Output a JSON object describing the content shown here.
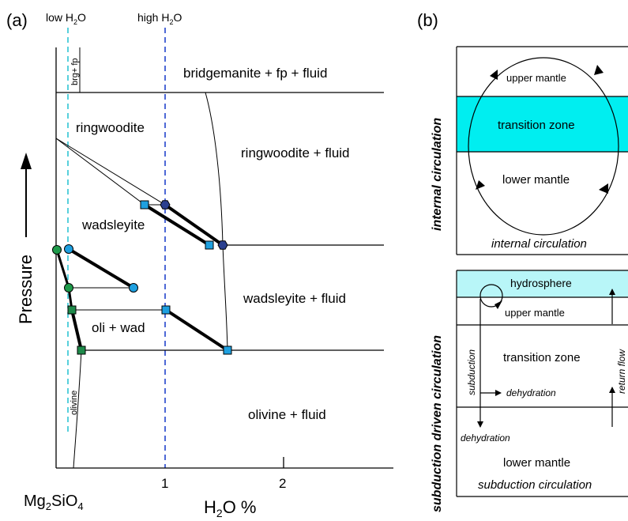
{
  "panel_a": {
    "label": "(a)",
    "low_h2o": {
      "text": "low H",
      "sub": "2",
      "end": "O"
    },
    "high_h2o": {
      "text": "high H",
      "sub": "2",
      "end": "O"
    },
    "y_axis_label": "Pressure",
    "x_origin": {
      "text": "Mg",
      "sub": "2",
      "end": "SiO",
      "sub2": "4"
    },
    "x_unit": {
      "text": "H",
      "sub": "2",
      "end": "O %"
    },
    "ticks": [
      "1",
      "2"
    ],
    "fields": {
      "bridgemanite": "bridgemanite + fp + fluid",
      "brg_fp": "brg+ fp",
      "ringwoodite": "ringwoodite",
      "ringwoodite_fluid": "ringwoodite + fluid",
      "wadsleyite": "wadsleyite",
      "wadsleyite_fluid": "wadsleyite + fluid",
      "oli_wad": "oli + wad",
      "olivine": "olivine",
      "olivine_fluid": "olivine + fluid"
    },
    "colors": {
      "low_h2o_line": "#2ec4d4",
      "high_h2o_line": "#2244cc",
      "square": "#1ea0e0",
      "square_green": "#1e8a4a",
      "circle_blue": "#1ea0e0",
      "circle_green": "#1e9a4a",
      "hexagon": "#2a3f8f"
    }
  },
  "panel_b": {
    "label": "(b)",
    "internal": {
      "side_label": "internal circulation",
      "upper_mantle": "upper mantle",
      "transition_zone": "transition zone",
      "lower_mantle": "lower mantle",
      "caption": "internal circulation",
      "tz_color": "#00eef0"
    },
    "subduction": {
      "side_label": "subduction driven circulation",
      "hydrosphere": "hydrosphere",
      "upper_mantle": "upper mantle",
      "transition_zone": "transition zone",
      "subduction": "subduction",
      "return_flow": "return flow",
      "dehydration_1": "dehydration",
      "dehydration_2": "dehydration",
      "lower_mantle": "lower mantle",
      "caption": "subduction circulation",
      "hydro_color": "#b8f6f8"
    }
  }
}
